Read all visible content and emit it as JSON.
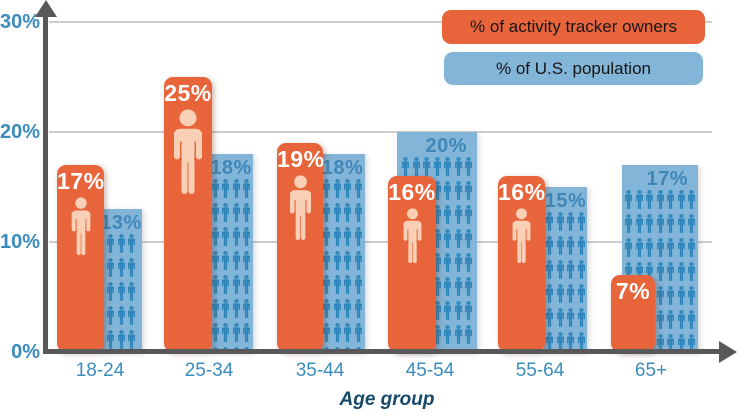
{
  "chart_data": {
    "type": "bar",
    "title": "",
    "xlabel": "Age group",
    "ylabel": "",
    "ylim": [
      0,
      30
    ],
    "ytick_values": [
      0,
      10,
      20,
      30
    ],
    "ytick_labels": [
      "0%",
      "10%",
      "20%",
      "30%"
    ],
    "categories": [
      "18-24",
      "25-34",
      "35-44",
      "45-54",
      "55-64",
      "65+"
    ],
    "series": [
      {
        "name": "% of activity tracker owners",
        "values": [
          17,
          25,
          19,
          16,
          16,
          7
        ],
        "color": "#E8653C",
        "value_label_color": "#FFFFFF",
        "icon": "person-icon",
        "icon_color": "#F9D0B6"
      },
      {
        "name": "% of U.S. population",
        "values": [
          13,
          18,
          18,
          20,
          15,
          17
        ],
        "color": "#83B5D8",
        "value_label_color": "#3F87B8",
        "icon": "person-icon",
        "icon_color": "#2F86BA"
      }
    ],
    "value_suffix": "%",
    "grid": true,
    "gridline_color": "#CDCDCD",
    "axis_color": "#58585A",
    "tick_label_color": "#3A8CBE",
    "xlabel_color": "#17496B",
    "legend_position": "top-right",
    "legend_text_color": "#161616"
  }
}
